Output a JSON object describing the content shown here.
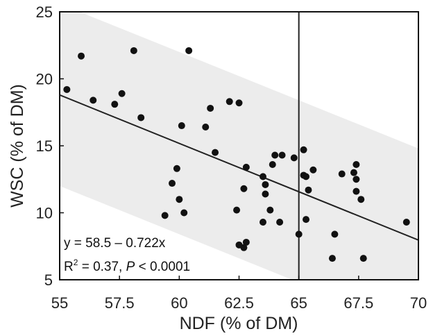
{
  "chart_data": {
    "type": "scatter",
    "xlabel": "NDF (% of DM)",
    "ylabel": "WSC (% of DM)",
    "xlim": [
      55,
      70
    ],
    "ylim": [
      5,
      25
    ],
    "x_ticks": [
      55,
      57.5,
      60,
      62.5,
      65,
      67.5,
      70
    ],
    "x_tick_labels": [
      "55",
      "57.5",
      "60",
      "62.5",
      "65",
      "67.5",
      "70"
    ],
    "y_ticks": [
      5,
      10,
      15,
      20,
      25
    ],
    "y_tick_labels": [
      "5",
      "10",
      "15",
      "20",
      "25"
    ],
    "grid": false,
    "vertical_reference_line": 65,
    "regression": {
      "intercept": 58.5,
      "slope": -0.722
    },
    "prediction_band": {
      "upper": [
        [
          55,
          25.6
        ],
        [
          70,
          14.8
        ]
      ],
      "lower": [
        [
          55,
          12.0
        ],
        [
          70,
          1.2
        ]
      ]
    },
    "annotations": {
      "equation": "y = 58.5 – 0.722x",
      "r2_prefix": "R",
      "r2_sup": "2",
      "r2_mid": " = 0.37, ",
      "p_symbol": "P",
      "p_rest": " < 0.0001"
    },
    "points": [
      {
        "x": 55.3,
        "y": 19.2
      },
      {
        "x": 55.9,
        "y": 21.7
      },
      {
        "x": 56.4,
        "y": 18.4
      },
      {
        "x": 57.3,
        "y": 18.1
      },
      {
        "x": 57.6,
        "y": 18.9
      },
      {
        "x": 58.1,
        "y": 22.1
      },
      {
        "x": 58.4,
        "y": 17.1
      },
      {
        "x": 59.4,
        "y": 9.8
      },
      {
        "x": 59.7,
        "y": 12.2
      },
      {
        "x": 59.9,
        "y": 13.3
      },
      {
        "x": 60.0,
        "y": 11.0
      },
      {
        "x": 60.1,
        "y": 16.5
      },
      {
        "x": 60.2,
        "y": 10.0
      },
      {
        "x": 60.4,
        "y": 22.1
      },
      {
        "x": 61.1,
        "y": 16.4
      },
      {
        "x": 61.3,
        "y": 17.8
      },
      {
        "x": 61.5,
        "y": 14.5
      },
      {
        "x": 62.1,
        "y": 18.3
      },
      {
        "x": 62.5,
        "y": 18.2
      },
      {
        "x": 62.4,
        "y": 10.2
      },
      {
        "x": 62.5,
        "y": 7.6
      },
      {
        "x": 62.7,
        "y": 11.8
      },
      {
        "x": 62.8,
        "y": 13.4
      },
      {
        "x": 62.8,
        "y": 7.8
      },
      {
        "x": 62.7,
        "y": 7.4
      },
      {
        "x": 63.5,
        "y": 12.7
      },
      {
        "x": 63.6,
        "y": 12.1
      },
      {
        "x": 63.6,
        "y": 11.4
      },
      {
        "x": 63.5,
        "y": 9.3
      },
      {
        "x": 63.8,
        "y": 10.2
      },
      {
        "x": 63.9,
        "y": 13.6
      },
      {
        "x": 64.0,
        "y": 14.3
      },
      {
        "x": 64.2,
        "y": 9.3
      },
      {
        "x": 64.3,
        "y": 14.3
      },
      {
        "x": 64.8,
        "y": 14.1
      },
      {
        "x": 65.0,
        "y": 8.4
      },
      {
        "x": 65.2,
        "y": 14.7
      },
      {
        "x": 65.2,
        "y": 12.8
      },
      {
        "x": 65.3,
        "y": 12.7
      },
      {
        "x": 65.3,
        "y": 9.5
      },
      {
        "x": 65.4,
        "y": 11.7
      },
      {
        "x": 65.6,
        "y": 13.2
      },
      {
        "x": 66.4,
        "y": 6.6
      },
      {
        "x": 66.5,
        "y": 8.4
      },
      {
        "x": 66.8,
        "y": 12.9
      },
      {
        "x": 67.3,
        "y": 13.0
      },
      {
        "x": 67.4,
        "y": 13.6
      },
      {
        "x": 67.4,
        "y": 12.5
      },
      {
        "x": 67.4,
        "y": 11.6
      },
      {
        "x": 67.6,
        "y": 11.0
      },
      {
        "x": 67.7,
        "y": 6.6
      },
      {
        "x": 69.5,
        "y": 9.3
      }
    ]
  }
}
